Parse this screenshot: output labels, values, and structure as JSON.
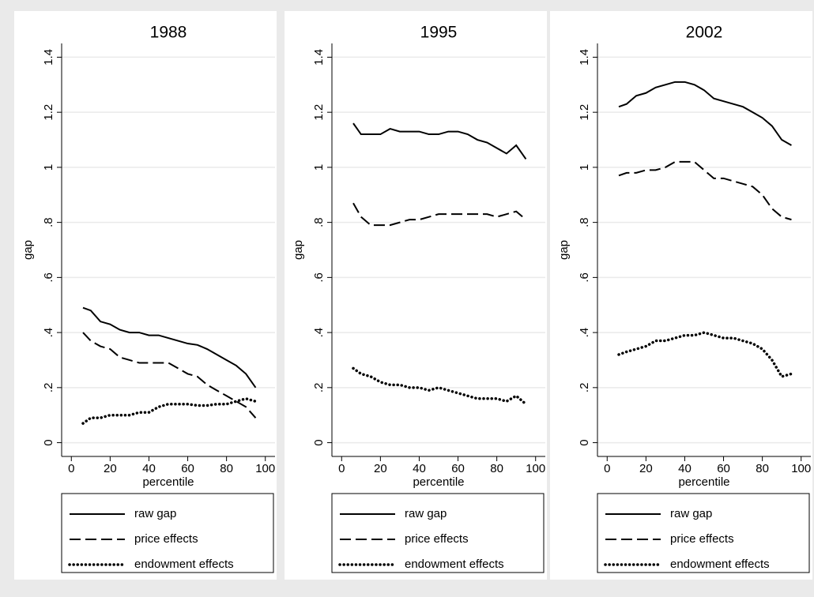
{
  "chart_data": [
    {
      "type": "line",
      "title": "1988",
      "xlabel": "percentile",
      "ylabel": "gap",
      "x": [
        6,
        10,
        15,
        20,
        25,
        30,
        35,
        40,
        45,
        50,
        55,
        60,
        65,
        70,
        75,
        80,
        85,
        90,
        95
      ],
      "xlim": [
        -5,
        105
      ],
      "xticks": [
        0,
        20,
        40,
        60,
        80,
        100
      ],
      "ylim": [
        -0.05,
        1.45
      ],
      "yticks": [
        0,
        {
          "value": 0.2,
          "label": ".2"
        },
        {
          "value": 0.4,
          "label": ".4"
        },
        {
          "value": 0.6,
          "label": ".6"
        },
        {
          "value": 0.8,
          "label": ".8"
        },
        1,
        1.2,
        1.4
      ],
      "grid": true,
      "series": [
        {
          "name": "raw gap",
          "color": "#000000",
          "style": "solid",
          "values": [
            0.49,
            0.48,
            0.44,
            0.43,
            0.41,
            0.4,
            0.4,
            0.39,
            0.39,
            0.38,
            0.37,
            0.36,
            0.355,
            0.34,
            0.32,
            0.3,
            0.28,
            0.25,
            0.2
          ]
        },
        {
          "name": "price effects",
          "color": "#000000",
          "style": "dash",
          "values": [
            0.4,
            0.37,
            0.35,
            0.34,
            0.31,
            0.3,
            0.29,
            0.29,
            0.29,
            0.29,
            0.27,
            0.25,
            0.24,
            0.21,
            0.19,
            0.17,
            0.15,
            0.13,
            0.09
          ]
        },
        {
          "name": "endowment effects",
          "color": "#000000",
          "style": "dot",
          "values": [
            0.07,
            0.09,
            0.09,
            0.1,
            0.1,
            0.1,
            0.11,
            0.11,
            0.13,
            0.14,
            0.14,
            0.14,
            0.135,
            0.135,
            0.14,
            0.14,
            0.15,
            0.16,
            0.15
          ]
        }
      ]
    },
    {
      "type": "line",
      "title": "1995",
      "xlabel": "percentile",
      "ylabel": "gap",
      "x": [
        6,
        10,
        15,
        20,
        25,
        30,
        35,
        40,
        45,
        50,
        55,
        60,
        65,
        70,
        75,
        80,
        85,
        90,
        95
      ],
      "xlim": [
        -5,
        105
      ],
      "xticks": [
        0,
        20,
        40,
        60,
        80,
        100
      ],
      "ylim": [
        -0.05,
        1.45
      ],
      "yticks": [
        0,
        {
          "value": 0.2,
          "label": ".2"
        },
        {
          "value": 0.4,
          "label": ".4"
        },
        {
          "value": 0.6,
          "label": ".6"
        },
        {
          "value": 0.8,
          "label": ".8"
        },
        1,
        1.2,
        1.4
      ],
      "grid": true,
      "series": [
        {
          "name": "raw gap",
          "color": "#000000",
          "style": "solid",
          "values": [
            1.16,
            1.12,
            1.12,
            1.12,
            1.14,
            1.13,
            1.13,
            1.13,
            1.12,
            1.12,
            1.13,
            1.13,
            1.12,
            1.1,
            1.09,
            1.07,
            1.05,
            1.08,
            1.03
          ]
        },
        {
          "name": "price effects",
          "color": "#000000",
          "style": "dash",
          "values": [
            0.87,
            0.82,
            0.79,
            0.79,
            0.79,
            0.8,
            0.81,
            0.81,
            0.82,
            0.83,
            0.83,
            0.83,
            0.83,
            0.83,
            0.83,
            0.82,
            0.83,
            0.84,
            0.81
          ]
        },
        {
          "name": "endowment effects",
          "color": "#000000",
          "style": "dot",
          "values": [
            0.27,
            0.25,
            0.24,
            0.22,
            0.21,
            0.21,
            0.2,
            0.2,
            0.19,
            0.2,
            0.19,
            0.18,
            0.17,
            0.16,
            0.16,
            0.16,
            0.15,
            0.17,
            0.14
          ]
        }
      ]
    },
    {
      "type": "line",
      "title": "2002",
      "xlabel": "percentile",
      "ylabel": "gap",
      "x": [
        6,
        10,
        15,
        20,
        25,
        30,
        35,
        40,
        45,
        50,
        55,
        60,
        65,
        70,
        75,
        80,
        85,
        90,
        95
      ],
      "xlim": [
        -5,
        105
      ],
      "xticks": [
        0,
        20,
        40,
        60,
        80,
        100
      ],
      "ylim": [
        -0.05,
        1.45
      ],
      "yticks": [
        0,
        {
          "value": 0.2,
          "label": ".2"
        },
        {
          "value": 0.4,
          "label": ".4"
        },
        {
          "value": 0.6,
          "label": ".6"
        },
        {
          "value": 0.8,
          "label": ".8"
        },
        1,
        1.2,
        1.4
      ],
      "grid": true,
      "series": [
        {
          "name": "raw gap",
          "color": "#000000",
          "style": "solid",
          "values": [
            1.22,
            1.23,
            1.26,
            1.27,
            1.29,
            1.3,
            1.31,
            1.31,
            1.3,
            1.28,
            1.25,
            1.24,
            1.23,
            1.22,
            1.2,
            1.18,
            1.15,
            1.1,
            1.08
          ]
        },
        {
          "name": "price effects",
          "color": "#000000",
          "style": "dash",
          "values": [
            0.97,
            0.98,
            0.98,
            0.99,
            0.99,
            1.0,
            1.02,
            1.02,
            1.02,
            0.99,
            0.96,
            0.96,
            0.95,
            0.94,
            0.93,
            0.9,
            0.85,
            0.82,
            0.81
          ]
        },
        {
          "name": "endowment effects",
          "color": "#000000",
          "style": "dot",
          "values": [
            0.32,
            0.33,
            0.34,
            0.35,
            0.37,
            0.37,
            0.38,
            0.39,
            0.39,
            0.4,
            0.39,
            0.38,
            0.38,
            0.37,
            0.36,
            0.34,
            0.3,
            0.24,
            0.25
          ]
        }
      ]
    }
  ]
}
